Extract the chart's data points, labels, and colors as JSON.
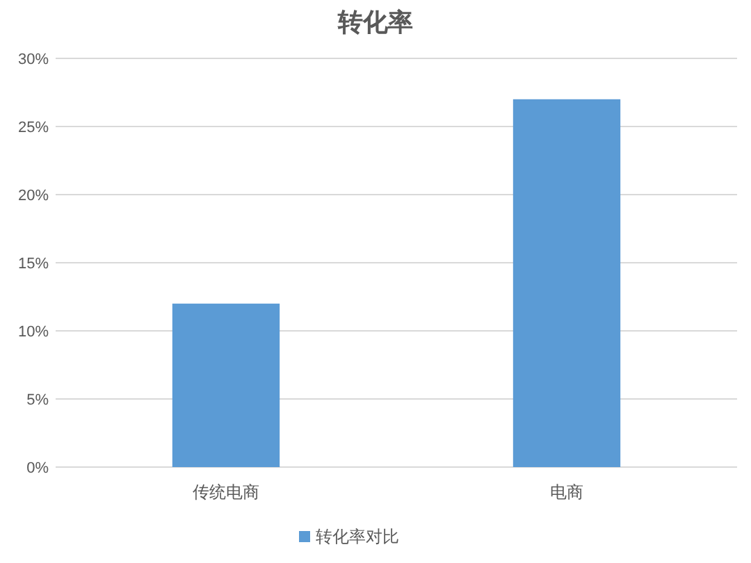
{
  "chart_data": {
    "type": "bar",
    "title": "转化率",
    "categories": [
      "传统电商",
      "电商"
    ],
    "series": [
      {
        "name": "转化率对比",
        "color": "#5b9bd5",
        "values": [
          12,
          27
        ]
      }
    ],
    "ylim": [
      0,
      30
    ],
    "yticks": [
      {
        "value": 0,
        "label": "0%"
      },
      {
        "value": 5,
        "label": "5%"
      },
      {
        "value": 10,
        "label": "10%"
      },
      {
        "value": 15,
        "label": "15%"
      },
      {
        "value": 20,
        "label": "20%"
      },
      {
        "value": 25,
        "label": "25%"
      },
      {
        "value": 30,
        "label": "30%"
      }
    ],
    "grid": "y",
    "legend": "bottom"
  }
}
